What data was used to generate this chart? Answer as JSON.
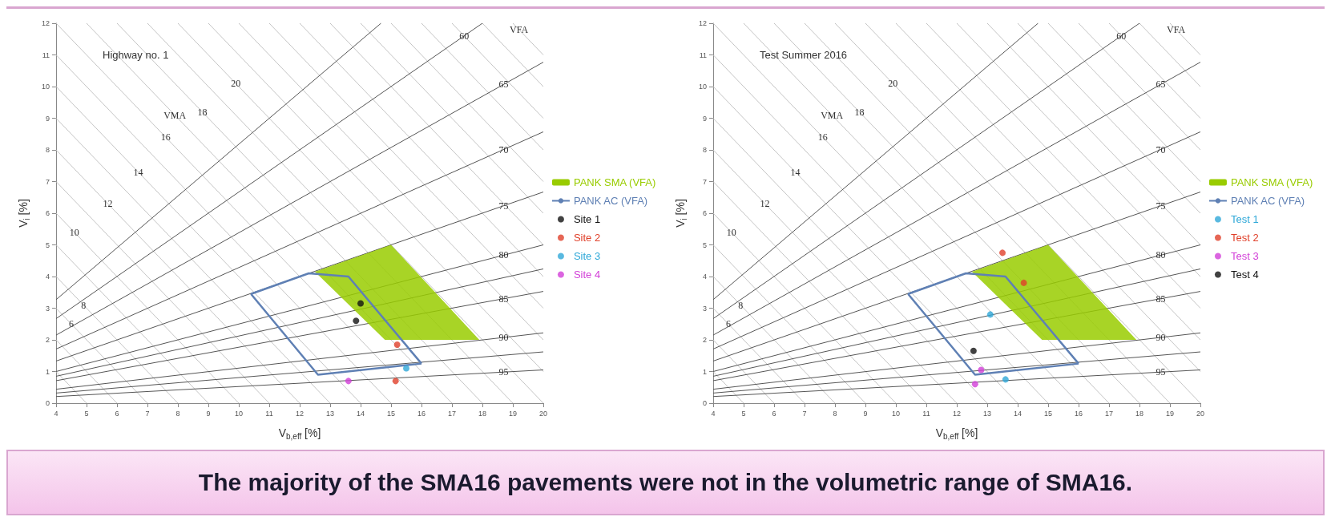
{
  "chart_data": [
    {
      "type": "line",
      "title": "Highway no. 1",
      "xlabel": "V$_{b,eff}$ [%]",
      "ylabel": "V$_{i}$ [%]",
      "xlim": [
        4,
        20
      ],
      "ylim": [
        0,
        12
      ],
      "xticks": [
        4,
        5,
        6,
        7,
        8,
        9,
        10,
        11,
        12,
        13,
        14,
        15,
        16,
        17,
        18,
        19,
        20
      ],
      "yticks": [
        0,
        1,
        2,
        3,
        4,
        5,
        6,
        7,
        8,
        9,
        10,
        11,
        12
      ],
      "grid": false,
      "legend": "right",
      "annotations": [
        {
          "text": "6",
          "x": 4.5,
          "y": 2.5
        },
        {
          "text": "8",
          "x": 4.9,
          "y": 3.1
        },
        {
          "text": "10",
          "x": 4.6,
          "y": 5.4
        },
        {
          "text": "12",
          "x": 5.7,
          "y": 6.3
        },
        {
          "text": "14",
          "x": 6.7,
          "y": 7.3
        },
        {
          "text": "16",
          "x": 7.6,
          "y": 8.4
        },
        {
          "text": "18",
          "x": 8.8,
          "y": 9.2
        },
        {
          "text": "20",
          "x": 9.9,
          "y": 10.1
        },
        {
          "text": "VMA",
          "x": 7.9,
          "y": 9.1
        },
        {
          "text": "VFA",
          "x": 19.2,
          "y": 11.8
        },
        {
          "text": "60",
          "x": 17.4,
          "y": 11.6
        },
        {
          "text": "65",
          "x": 18.7,
          "y": 10.07
        },
        {
          "text": "70",
          "x": 18.7,
          "y": 8.01
        },
        {
          "text": "75",
          "x": 18.7,
          "y": 6.23
        },
        {
          "text": "80",
          "x": 18.7,
          "y": 4.68
        },
        {
          "text": "85",
          "x": 18.7,
          "y": 3.3
        },
        {
          "text": "90",
          "x": 18.7,
          "y": 2.08
        },
        {
          "text": "95",
          "x": 18.7,
          "y": 0.98
        },
        "The majority of the SMA16 pavements were not in the volumetric range of SMA16."
      ],
      "series": [
        {
          "color": "#c4c4c4",
          "x": [
            4,
            5
          ],
          "values": [
            1,
            0
          ]
        },
        {
          "color": "#c4c4c4",
          "x": [
            4,
            6
          ],
          "values": [
            2,
            0
          ]
        },
        {
          "color": "#c4c4c4",
          "x": [
            4,
            7
          ],
          "values": [
            3,
            0
          ]
        },
        {
          "color": "#c4c4c4",
          "x": [
            4,
            8
          ],
          "values": [
            4,
            0
          ]
        },
        {
          "color": "#c4c4c4",
          "x": [
            4,
            9
          ],
          "values": [
            5,
            0
          ]
        },
        {
          "color": "#c4c4c4",
          "x": [
            4,
            10
          ],
          "values": [
            6,
            0
          ]
        },
        {
          "color": "#c4c4c4",
          "x": [
            4,
            11
          ],
          "values": [
            7,
            0
          ]
        },
        {
          "color": "#c4c4c4",
          "x": [
            4,
            12
          ],
          "values": [
            8,
            0
          ]
        },
        {
          "color": "#c4c4c4",
          "x": [
            4,
            13
          ],
          "values": [
            9,
            0
          ]
        },
        {
          "color": "#c4c4c4",
          "x": [
            4,
            14
          ],
          "values": [
            10,
            0
          ]
        },
        {
          "color": "#c4c4c4",
          "x": [
            4,
            15
          ],
          "values": [
            11,
            0
          ]
        },
        {
          "color": "#c4c4c4",
          "x": [
            4,
            16
          ],
          "values": [
            12,
            0
          ]
        },
        {
          "color": "#c4c4c4",
          "x": [
            5,
            17
          ],
          "values": [
            12,
            0
          ]
        },
        {
          "color": "#c4c4c4",
          "x": [
            6,
            18
          ],
          "values": [
            12,
            0
          ]
        },
        {
          "color": "#c4c4c4",
          "x": [
            7,
            19
          ],
          "values": [
            12,
            0
          ]
        },
        {
          "color": "#c4c4c4",
          "x": [
            8,
            20
          ],
          "values": [
            12,
            0
          ]
        },
        {
          "color": "#c4c4c4",
          "x": [
            9,
            20
          ],
          "values": [
            12,
            1
          ]
        },
        {
          "color": "#c4c4c4",
          "x": [
            10,
            20
          ],
          "values": [
            12,
            2
          ]
        },
        {
          "color": "#c4c4c4",
          "x": [
            11,
            20
          ],
          "values": [
            12,
            3
          ]
        },
        {
          "color": "#c4c4c4",
          "x": [
            12,
            20
          ],
          "values": [
            12,
            4
          ]
        },
        {
          "color": "#c4c4c4",
          "x": [
            13,
            20
          ],
          "values": [
            12,
            5
          ]
        },
        {
          "color": "#c4c4c4",
          "x": [
            14,
            20
          ],
          "values": [
            12,
            6
          ]
        },
        {
          "color": "#c4c4c4",
          "x": [
            15,
            20
          ],
          "values": [
            12,
            7
          ]
        },
        {
          "color": "#c4c4c4",
          "x": [
            16,
            20
          ],
          "values": [
            12,
            8
          ]
        },
        {
          "color": "#c4c4c4",
          "x": [
            17,
            20
          ],
          "values": [
            12,
            9
          ]
        },
        {
          "color": "#c4c4c4",
          "x": [
            18,
            20
          ],
          "values": [
            12,
            10
          ]
        },
        {
          "color": "#c4c4c4",
          "x": [
            19,
            20
          ],
          "values": [
            12,
            11
          ]
        },
        {
          "color": "#555555",
          "x": [
            4,
            14.67
          ],
          "values": [
            3.27,
            12
          ]
        },
        {
          "color": "#555555",
          "x": [
            4,
            18
          ],
          "values": [
            2.67,
            12
          ]
        },
        {
          "color": "#555555",
          "x": [
            4,
            20
          ],
          "values": [
            2.15,
            10.77
          ]
        },
        {
          "color": "#555555",
          "x": [
            4,
            20
          ],
          "values": [
            1.71,
            8.57
          ]
        },
        {
          "color": "#555555",
          "x": [
            4,
            20
          ],
          "values": [
            1.33,
            6.67
          ]
        },
        {
          "color": "#555555",
          "x": [
            4,
            20
          ],
          "values": [
            1,
            5
          ]
        },
        {
          "color": "#555555",
          "x": [
            4,
            20
          ],
          "values": [
            0.85,
            4.24
          ]
        },
        {
          "color": "#555555",
          "x": [
            4,
            20
          ],
          "values": [
            0.71,
            3.53
          ]
        },
        {
          "color": "#555555",
          "x": [
            4,
            20
          ],
          "values": [
            0.44,
            2.22
          ]
        },
        {
          "color": "#555555",
          "x": [
            4,
            20
          ],
          "values": [
            0.32,
            1.62
          ]
        },
        {
          "color": "#555555",
          "x": [
            4,
            20
          ],
          "values": [
            0.21,
            1.05
          ]
        },
        {
          "type": "area",
          "name": "PANK SMA (VFA)",
          "color": "#99cc00",
          "x": [
            12.5,
            15.0,
            17.9,
            14.8
          ],
          "values": [
            4.15,
            5.0,
            2.0,
            2.0
          ]
        },
        {
          "name": "PANK AC (VFA)",
          "color": "#5f80b4",
          "x": [
            10.4,
            12.3,
            13.6,
            16.0
          ],
          "values": [
            3.45,
            4.1,
            4.0,
            1.25
          ]
        },
        {
          "color": "#5f80b4",
          "x": [
            10.4,
            12.6,
            16.0
          ],
          "values": [
            3.45,
            0.9,
            1.25
          ]
        },
        {
          "type": "scatter",
          "name": "Site 1",
          "color": "#111111",
          "marker": "circle",
          "x": [
            14.0,
            13.85
          ],
          "values": [
            3.15,
            2.6
          ]
        },
        {
          "type": "scatter",
          "name": "Site 2",
          "color": "#e0402a",
          "marker": "circle",
          "x": [
            15.2,
            15.15
          ],
          "values": [
            1.85,
            0.7
          ]
        },
        {
          "type": "scatter",
          "name": "Site 3",
          "color": "#2fa8d8",
          "marker": "circle",
          "x": [
            15.5
          ],
          "values": [
            1.1
          ]
        },
        {
          "type": "scatter",
          "name": "Site 4",
          "color": "#d23fd8",
          "marker": "circle",
          "x": [
            13.6
          ],
          "values": [
            0.7
          ]
        }
      ]
    },
    {
      "type": "line",
      "title": "Test Summer 2016",
      "xlabel": "V$_{b,eff}$ [%]",
      "ylabel": "V$_{i}$ [%]",
      "xlim": [
        4,
        20
      ],
      "ylim": [
        0,
        12
      ],
      "xticks": [
        4,
        5,
        6,
        7,
        8,
        9,
        10,
        11,
        12,
        13,
        14,
        15,
        16,
        17,
        18,
        19,
        20
      ],
      "yticks": [
        0,
        1,
        2,
        3,
        4,
        5,
        6,
        7,
        8,
        9,
        10,
        11,
        12
      ],
      "grid": false,
      "legend": "right",
      "annotations": [
        {
          "text": "6",
          "x": 4.5,
          "y": 2.5
        },
        {
          "text": "8",
          "x": 4.9,
          "y": 3.1
        },
        {
          "text": "10",
          "x": 4.6,
          "y": 5.4
        },
        {
          "text": "12",
          "x": 5.7,
          "y": 6.3
        },
        {
          "text": "14",
          "x": 6.7,
          "y": 7.3
        },
        {
          "text": "16",
          "x": 7.6,
          "y": 8.4
        },
        {
          "text": "18",
          "x": 8.8,
          "y": 9.2
        },
        {
          "text": "20",
          "x": 9.9,
          "y": 10.1
        },
        {
          "text": "VMA",
          "x": 7.9,
          "y": 9.1
        },
        {
          "text": "VFA",
          "x": 19.2,
          "y": 11.8
        },
        {
          "text": "60",
          "x": 17.4,
          "y": 11.6
        },
        {
          "text": "65",
          "x": 18.7,
          "y": 10.07
        },
        {
          "text": "70",
          "x": 18.7,
          "y": 8.01
        },
        {
          "text": "75",
          "x": 18.7,
          "y": 6.23
        },
        {
          "text": "80",
          "x": 18.7,
          "y": 4.68
        },
        {
          "text": "85",
          "x": 18.7,
          "y": 3.3
        },
        {
          "text": "90",
          "x": 18.7,
          "y": 2.08
        },
        {
          "text": "95",
          "x": 18.7,
          "y": 0.98
        }
      ],
      "series": [
        {
          "color": "#c4c4c4",
          "x": [
            4,
            5
          ],
          "values": [
            1,
            0
          ]
        },
        {
          "color": "#c4c4c4",
          "x": [
            4,
            6
          ],
          "values": [
            2,
            0
          ]
        },
        {
          "color": "#c4c4c4",
          "x": [
            4,
            7
          ],
          "values": [
            3,
            0
          ]
        },
        {
          "color": "#c4c4c4",
          "x": [
            4,
            8
          ],
          "values": [
            4,
            0
          ]
        },
        {
          "color": "#c4c4c4",
          "x": [
            4,
            9
          ],
          "values": [
            5,
            0
          ]
        },
        {
          "color": "#c4c4c4",
          "x": [
            4,
            10
          ],
          "values": [
            6,
            0
          ]
        },
        {
          "color": "#c4c4c4",
          "x": [
            4,
            11
          ],
          "values": [
            7,
            0
          ]
        },
        {
          "color": "#c4c4c4",
          "x": [
            4,
            12
          ],
          "values": [
            8,
            0
          ]
        },
        {
          "color": "#c4c4c4",
          "x": [
            4,
            13
          ],
          "values": [
            9,
            0
          ]
        },
        {
          "color": "#c4c4c4",
          "x": [
            4,
            14
          ],
          "values": [
            10,
            0
          ]
        },
        {
          "color": "#c4c4c4",
          "x": [
            4,
            15
          ],
          "values": [
            11,
            0
          ]
        },
        {
          "color": "#c4c4c4",
          "x": [
            4,
            16
          ],
          "values": [
            12,
            0
          ]
        },
        {
          "color": "#c4c4c4",
          "x": [
            5,
            17
          ],
          "values": [
            12,
            0
          ]
        },
        {
          "color": "#c4c4c4",
          "x": [
            6,
            18
          ],
          "values": [
            12,
            0
          ]
        },
        {
          "color": "#c4c4c4",
          "x": [
            7,
            19
          ],
          "values": [
            12,
            0
          ]
        },
        {
          "color": "#c4c4c4",
          "x": [
            8,
            20
          ],
          "values": [
            12,
            0
          ]
        },
        {
          "color": "#c4c4c4",
          "x": [
            9,
            20
          ],
          "values": [
            12,
            1
          ]
        },
        {
          "color": "#c4c4c4",
          "x": [
            10,
            20
          ],
          "values": [
            12,
            2
          ]
        },
        {
          "color": "#c4c4c4",
          "x": [
            11,
            20
          ],
          "values": [
            12,
            3
          ]
        },
        {
          "color": "#c4c4c4",
          "x": [
            12,
            20
          ],
          "values": [
            12,
            4
          ]
        },
        {
          "color": "#c4c4c4",
          "x": [
            13,
            20
          ],
          "values": [
            12,
            5
          ]
        },
        {
          "color": "#c4c4c4",
          "x": [
            14,
            20
          ],
          "values": [
            12,
            6
          ]
        },
        {
          "color": "#c4c4c4",
          "x": [
            15,
            20
          ],
          "values": [
            12,
            7
          ]
        },
        {
          "color": "#c4c4c4",
          "x": [
            16,
            20
          ],
          "values": [
            12,
            8
          ]
        },
        {
          "color": "#c4c4c4",
          "x": [
            17,
            20
          ],
          "values": [
            12,
            9
          ]
        },
        {
          "color": "#c4c4c4",
          "x": [
            18,
            20
          ],
          "values": [
            12,
            10
          ]
        },
        {
          "color": "#c4c4c4",
          "x": [
            19,
            20
          ],
          "values": [
            12,
            11
          ]
        },
        {
          "color": "#555555",
          "x": [
            4,
            14.67
          ],
          "values": [
            3.27,
            12
          ]
        },
        {
          "color": "#555555",
          "x": [
            4,
            18
          ],
          "values": [
            2.67,
            12
          ]
        },
        {
          "color": "#555555",
          "x": [
            4,
            20
          ],
          "values": [
            2.15,
            10.77
          ]
        },
        {
          "color": "#555555",
          "x": [
            4,
            20
          ],
          "values": [
            1.71,
            8.57
          ]
        },
        {
          "color": "#555555",
          "x": [
            4,
            20
          ],
          "values": [
            1.33,
            6.67
          ]
        },
        {
          "color": "#555555",
          "x": [
            4,
            20
          ],
          "values": [
            1,
            5
          ]
        },
        {
          "color": "#555555",
          "x": [
            4,
            20
          ],
          "values": [
            0.85,
            4.24
          ]
        },
        {
          "color": "#555555",
          "x": [
            4,
            20
          ],
          "values": [
            0.71,
            3.53
          ]
        },
        {
          "color": "#555555",
          "x": [
            4,
            20
          ],
          "values": [
            0.44,
            2.22
          ]
        },
        {
          "color": "#555555",
          "x": [
            4,
            20
          ],
          "values": [
            0.32,
            1.62
          ]
        },
        {
          "color": "#555555",
          "x": [
            4,
            20
          ],
          "values": [
            0.21,
            1.05
          ]
        },
        {
          "type": "area",
          "name": "PANK SMA (VFA)",
          "color": "#99cc00",
          "x": [
            12.5,
            15.0,
            17.9,
            14.8
          ],
          "values": [
            4.15,
            5.0,
            2.0,
            2.0
          ]
        },
        {
          "name": "PANK AC (VFA)",
          "color": "#5f80b4",
          "x": [
            10.4,
            12.3,
            13.6,
            16.0
          ],
          "values": [
            3.45,
            4.1,
            4.0,
            1.25
          ]
        },
        {
          "color": "#5f80b4",
          "x": [
            10.4,
            12.6,
            16.0
          ],
          "values": [
            3.45,
            0.9,
            1.25
          ]
        },
        {
          "type": "scatter",
          "name": "Test 1",
          "color": "#2fa8d8",
          "marker": "circle",
          "x": [
            13.1,
            13.6
          ],
          "values": [
            2.8,
            0.75
          ]
        },
        {
          "type": "scatter",
          "name": "Test 2",
          "color": "#e0402a",
          "marker": "circle",
          "x": [
            13.5,
            14.2
          ],
          "values": [
            4.75,
            3.8
          ]
        },
        {
          "type": "scatter",
          "name": "Test 3",
          "color": "#d23fd8",
          "marker": "circle",
          "x": [
            12.8,
            12.6
          ],
          "values": [
            1.05,
            0.6
          ]
        },
        {
          "type": "scatter",
          "name": "Test 4",
          "color": "#111111",
          "marker": "circle",
          "x": [
            12.55
          ],
          "values": [
            1.65
          ]
        }
      ]
    }
  ]
}
